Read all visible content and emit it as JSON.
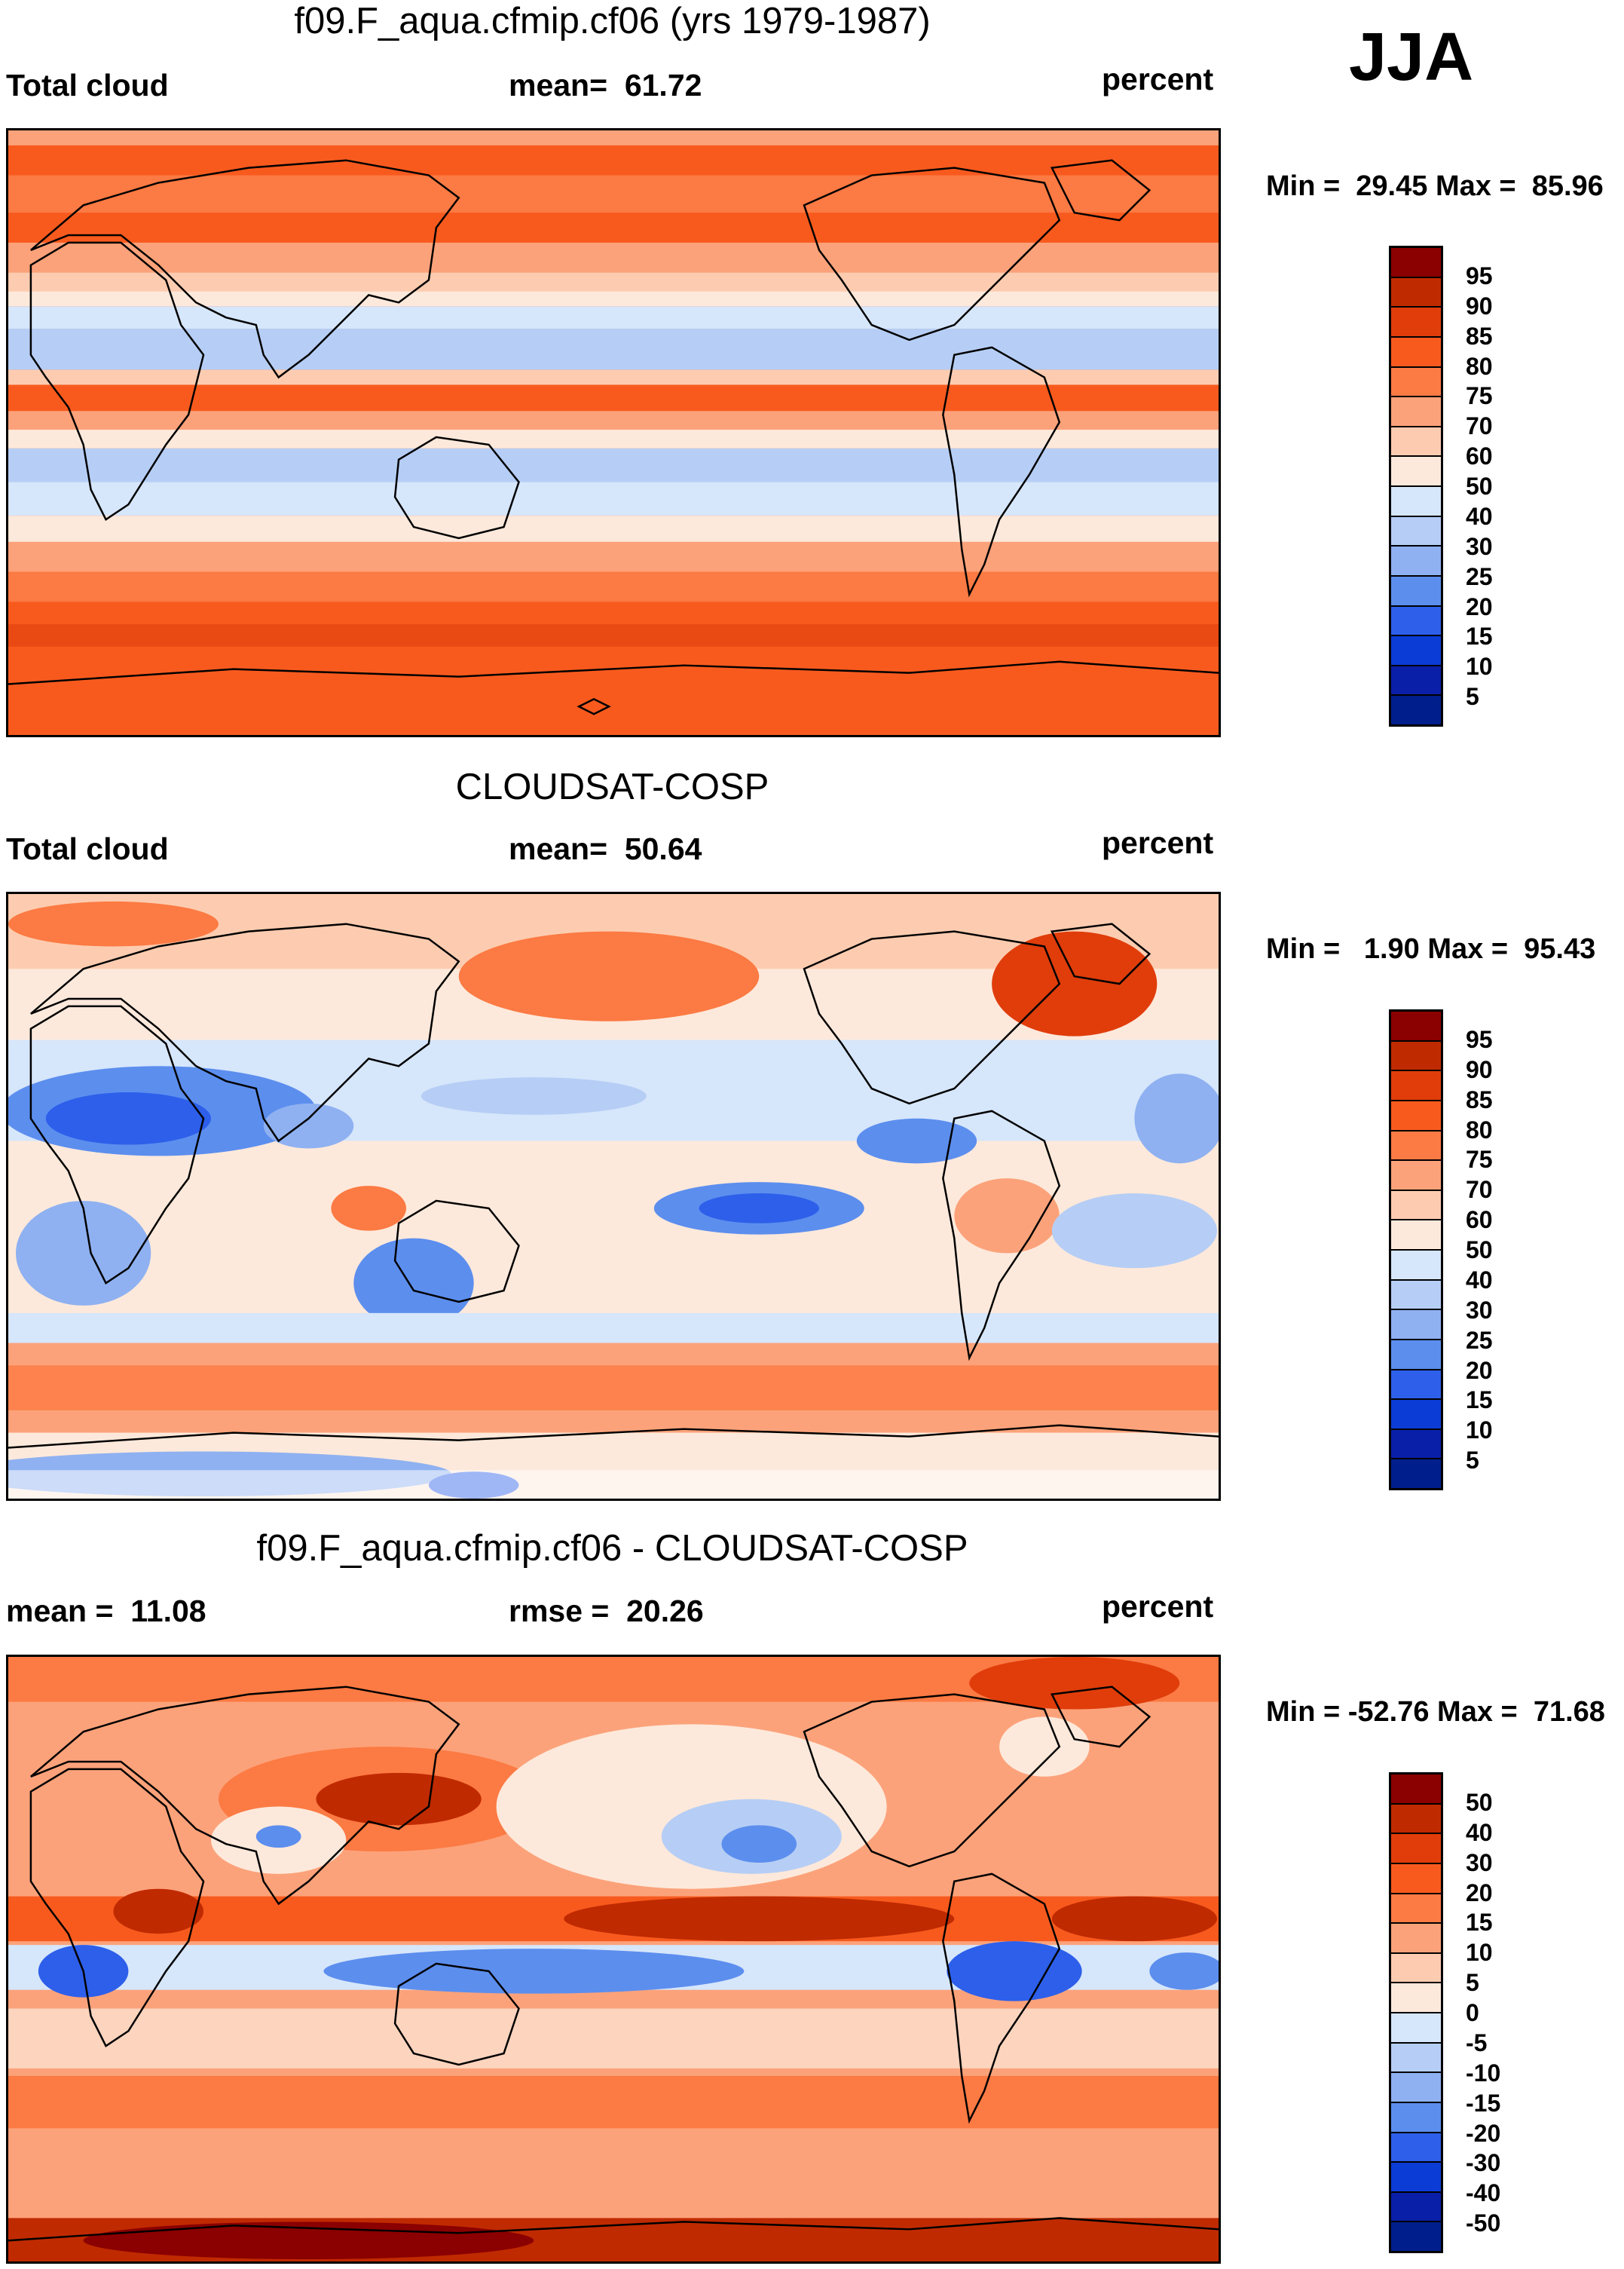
{
  "season": "JJA",
  "panels": [
    {
      "title": "f09.F_aqua.cfmip.cf06 (yrs 1979-1987)",
      "left_label": "Total cloud",
      "center_label": "mean=  61.72",
      "right_label": "percent",
      "minmax": "Min =  29.45 Max =  85.96",
      "colorbar_labels": [
        "95",
        "90",
        "85",
        "80",
        "75",
        "70",
        "60",
        "50",
        "40",
        "30",
        "25",
        "20",
        "15",
        "10",
        "5"
      ],
      "colorbar_colors": [
        "#8b0000",
        "#c02a00",
        "#e03d0b",
        "#f85a1e",
        "#fc7a43",
        "#fca27a",
        "#fdccb0",
        "#fde9db",
        "#d6e6fb",
        "#b6cef5",
        "#8fb1f1",
        "#5c8eee",
        "#2d5fea",
        "#0c3cd6",
        "#0a1fa8",
        "#001f8c"
      ]
    },
    {
      "title": "CLOUDSAT-COSP",
      "left_label": "Total cloud",
      "center_label": "mean=  50.64",
      "right_label": "percent",
      "minmax": "Min =   1.90 Max =  95.43",
      "colorbar_labels": [
        "95",
        "90",
        "85",
        "80",
        "75",
        "70",
        "60",
        "50",
        "40",
        "30",
        "25",
        "20",
        "15",
        "10",
        "5"
      ],
      "colorbar_colors": [
        "#8b0000",
        "#c02a00",
        "#e03d0b",
        "#f85a1e",
        "#fc7a43",
        "#fca27a",
        "#fdccb0",
        "#fde9db",
        "#d6e6fb",
        "#b6cef5",
        "#8fb1f1",
        "#5c8eee",
        "#2d5fea",
        "#0c3cd6",
        "#0a1fa8",
        "#001f8c"
      ]
    },
    {
      "title": "f09.F_aqua.cfmip.cf06 - CLOUDSAT-COSP",
      "left_label": "mean =  11.08",
      "center_label": "rmse =  20.26",
      "right_label": "percent",
      "minmax": "Min = -52.76 Max =  71.68",
      "colorbar_labels": [
        "50",
        "40",
        "30",
        "20",
        "15",
        "10",
        "5",
        "0",
        "-5",
        "-10",
        "-15",
        "-20",
        "-30",
        "-40",
        "-50"
      ],
      "colorbar_colors": [
        "#8b0000",
        "#c02a00",
        "#e03d0b",
        "#f85a1e",
        "#fc7a43",
        "#fca27a",
        "#fdccb0",
        "#fde9db",
        "#d6e6fb",
        "#b6cef5",
        "#8fb1f1",
        "#5c8eee",
        "#2d5fea",
        "#0c3cd6",
        "#0a1fa8",
        "#001f8c"
      ]
    }
  ]
}
